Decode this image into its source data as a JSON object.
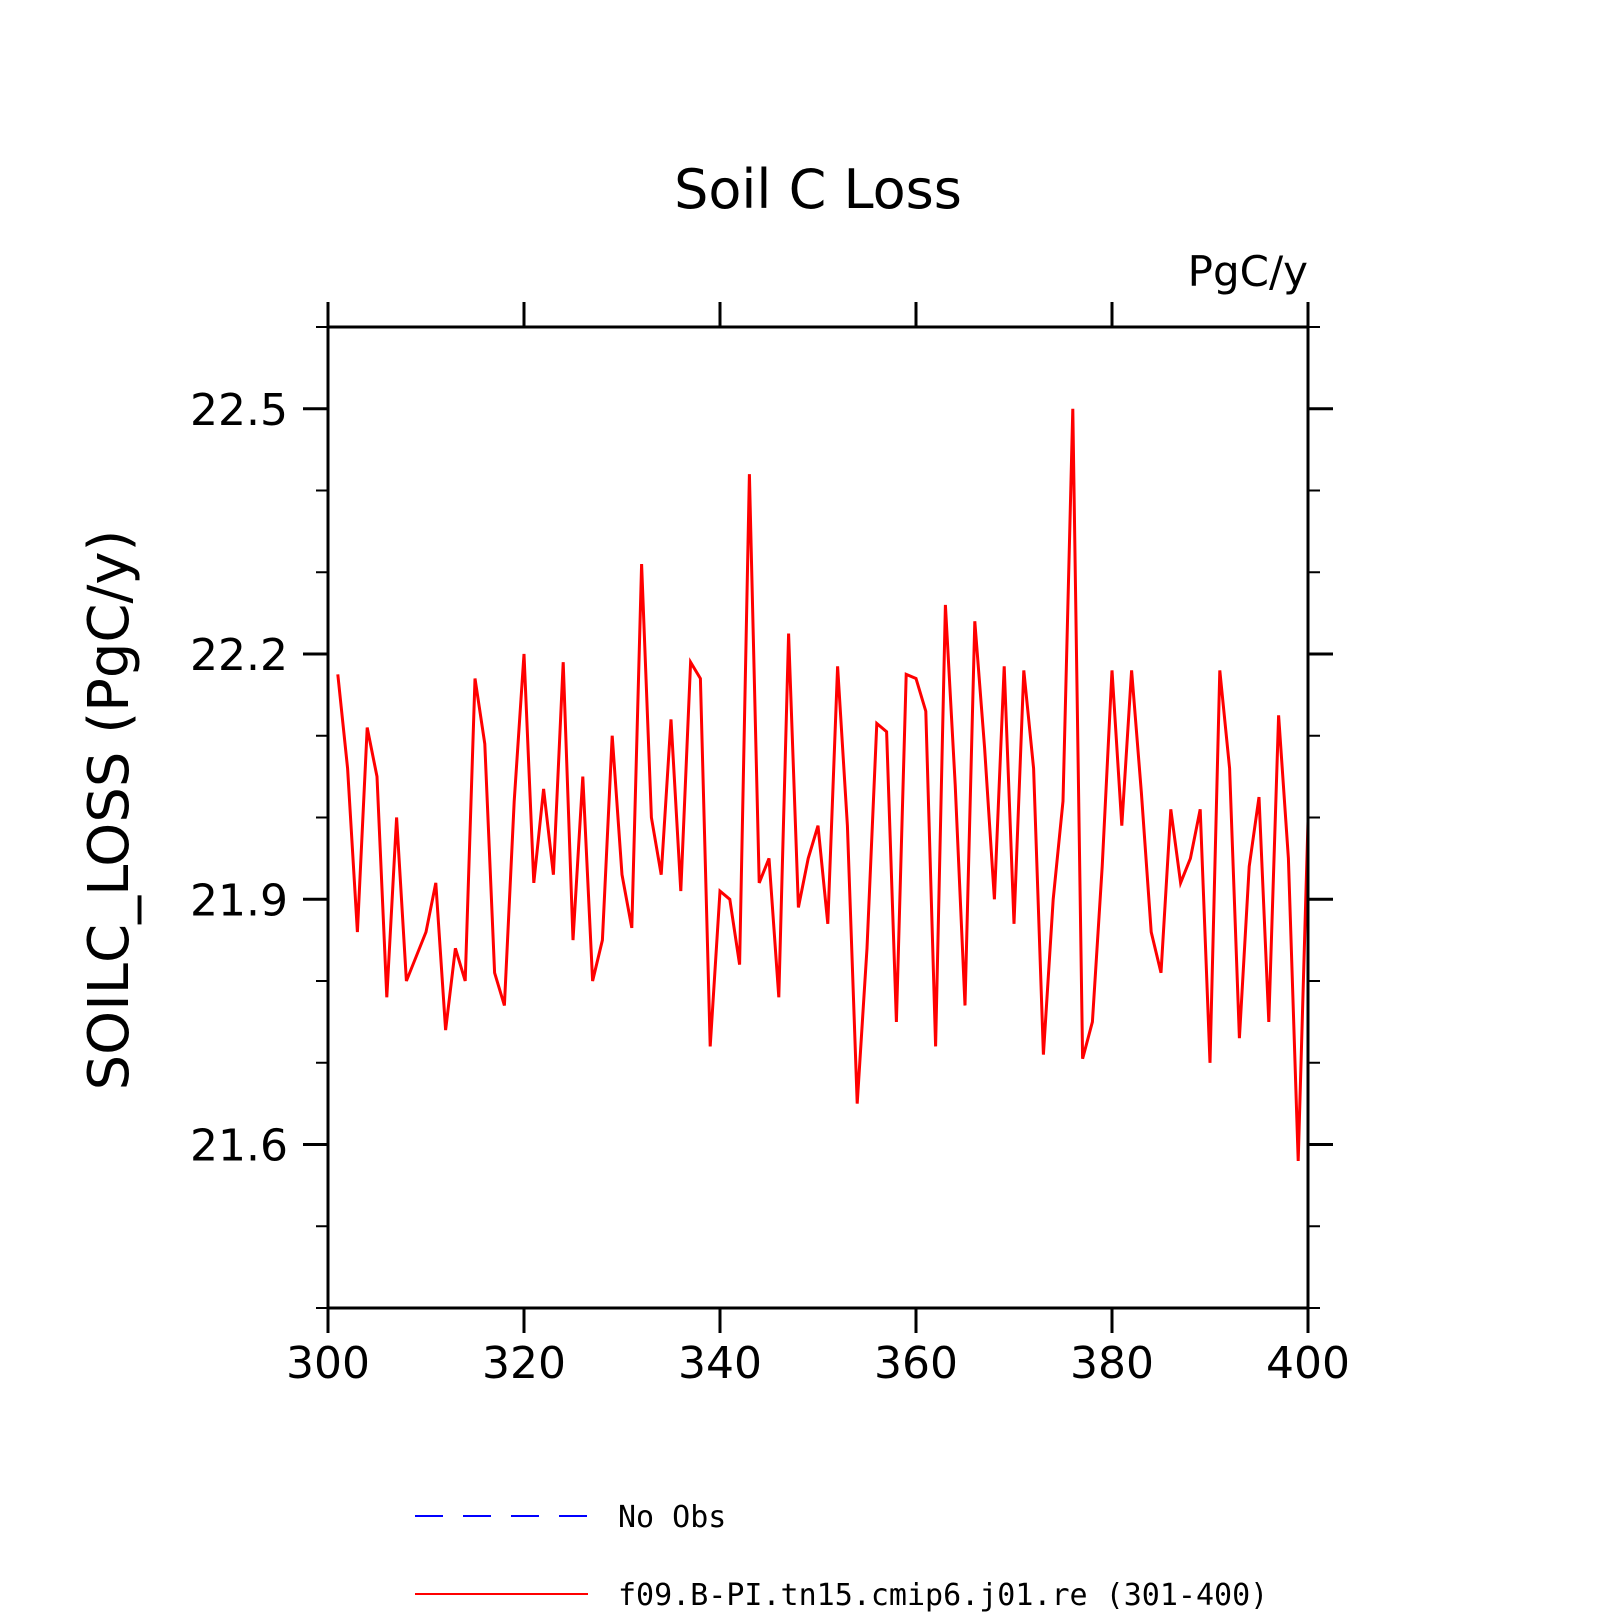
{
  "chart_data": {
    "type": "line",
    "title": "Soil C Loss",
    "units": "PgC/y",
    "ylabel": "SOILC_LOSS  (PgC/y)",
    "xlabel": "",
    "xlim": [
      300,
      400
    ],
    "ylim": [
      21.4,
      22.6
    ],
    "x_ticks": [
      300,
      320,
      340,
      360,
      380,
      400
    ],
    "x_tick_labels": [
      "300",
      "320",
      "340",
      "360",
      "380",
      "400"
    ],
    "y_ticks": [
      21.6,
      21.9,
      22.2,
      22.5
    ],
    "y_tick_labels": [
      "21.6",
      "21.9",
      "22.2",
      "22.5"
    ],
    "grid": false,
    "legend_position": "bottom",
    "series": [
      {
        "name": "No Obs",
        "color": "#0000ff",
        "dash": "dashed",
        "x": [],
        "y": []
      },
      {
        "name": "f09.B-PI.tn15.cmip6.j01.re (301-400)",
        "color": "#ff0000",
        "dash": "solid",
        "x": [
          301,
          302,
          303,
          304,
          305,
          306,
          307,
          308,
          309,
          310,
          311,
          312,
          313,
          314,
          315,
          316,
          317,
          318,
          319,
          320,
          321,
          322,
          323,
          324,
          325,
          326,
          327,
          328,
          329,
          330,
          331,
          332,
          333,
          334,
          335,
          336,
          337,
          338,
          339,
          340,
          341,
          342,
          343,
          344,
          345,
          346,
          347,
          348,
          349,
          350,
          351,
          352,
          353,
          354,
          355,
          356,
          357,
          358,
          359,
          360,
          361,
          362,
          363,
          364,
          365,
          366,
          367,
          368,
          369,
          370,
          371,
          372,
          373,
          374,
          375,
          376,
          377,
          378,
          379,
          380,
          381,
          382,
          383,
          384,
          385,
          386,
          387,
          388,
          389,
          390,
          391,
          392,
          393,
          394,
          395,
          396,
          397,
          398,
          399,
          400
        ],
        "y": [
          22.175,
          22.06,
          21.86,
          22.11,
          22.05,
          21.78,
          22.0,
          21.8,
          21.83,
          21.86,
          21.92,
          21.74,
          21.84,
          21.8,
          22.17,
          22.09,
          21.81,
          21.77,
          22.02,
          22.2,
          21.92,
          22.035,
          21.93,
          22.19,
          21.85,
          22.05,
          21.8,
          21.85,
          22.1,
          21.93,
          21.865,
          22.31,
          22.0,
          21.93,
          22.12,
          21.91,
          22.19,
          22.17,
          21.72,
          21.91,
          21.9,
          21.82,
          22.42,
          21.92,
          21.95,
          21.78,
          22.225,
          21.89,
          21.95,
          21.99,
          21.87,
          22.185,
          21.99,
          21.65,
          21.84,
          22.115,
          22.105,
          21.75,
          22.175,
          22.17,
          22.13,
          21.72,
          22.26,
          22.04,
          21.77,
          22.24,
          22.085,
          21.9,
          22.185,
          21.87,
          22.18,
          22.06,
          21.71,
          21.9,
          22.02,
          22.5,
          21.705,
          21.75,
          21.94,
          22.18,
          21.99,
          22.18,
          22.03,
          21.86,
          21.81,
          22.01,
          21.92,
          21.95,
          22.01,
          21.7,
          22.18,
          22.06,
          21.73,
          21.94,
          22.025,
          21.75,
          22.125,
          21.95,
          21.58,
          21.995
        ]
      }
    ]
  }
}
